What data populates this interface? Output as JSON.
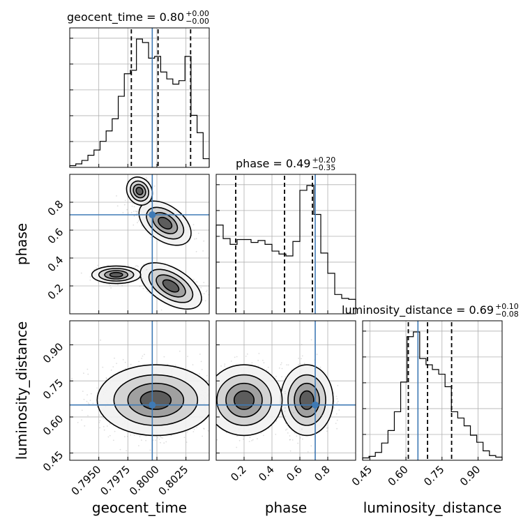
{
  "chart_data": {
    "type": "corner",
    "parameters": [
      "geocent_time",
      "phase",
      "luminosity_distance"
    ],
    "truths": {
      "geocent_time": 0.7996,
      "phase": 0.71,
      "luminosity_distance": 0.65
    },
    "ranges": {
      "geocent_time": [
        0.7925,
        0.8045
      ],
      "phase": [
        0.0,
        1.0
      ],
      "luminosity_distance": [
        0.42,
        1.0
      ]
    },
    "ticks": {
      "geocent_time": {
        "values": [
          0.795,
          0.7975,
          0.8,
          0.8025
        ],
        "labels": [
          "0.7950",
          "0.7975",
          "0.8000",
          "0.8025"
        ]
      },
      "phase": {
        "values": [
          0.2,
          0.4,
          0.6,
          0.8
        ],
        "labels": [
          "0.2",
          "0.4",
          "0.6",
          "0.8"
        ]
      },
      "luminosity_distance": {
        "values": [
          0.45,
          0.6,
          0.75,
          0.9
        ],
        "labels": [
          "0.45",
          "0.60",
          "0.75",
          "0.90"
        ]
      }
    },
    "marginals": {
      "geocent_time": {
        "title": "geocent_time = 0.80",
        "sup": "+0.00",
        "sub": "−0.00",
        "quantiles": [
          0.7978,
          0.8001,
          0.8029
        ],
        "counts": [
          2,
          4,
          8,
          14,
          20,
          30,
          42,
          56,
          82,
          108,
          112,
          148,
          144,
          126,
          128,
          110,
          102,
          96,
          100,
          128,
          60,
          40,
          10
        ]
      },
      "phase": {
        "title": "phase = 0.49",
        "sup": "+0.20",
        "sub": "−0.35",
        "quantiles": [
          0.14,
          0.49,
          0.69
        ],
        "counts": [
          92,
          78,
          72,
          77,
          77,
          74,
          76,
          72,
          65,
          62,
          60,
          75,
          128,
          133,
          103,
          63,
          42,
          20,
          16,
          15
        ]
      },
      "luminosity_distance": {
        "title": "luminosity_distance = 0.69",
        "sup": "+0.10",
        "sub": "−0.08",
        "quantiles": [
          0.61,
          0.69,
          0.79
        ],
        "counts": [
          3,
          5,
          10,
          22,
          38,
          62,
          100,
          158,
          164,
          130,
          122,
          116,
          110,
          94,
          62,
          54,
          44,
          32,
          23,
          12,
          6,
          4
        ]
      }
    },
    "joint_2d": [
      {
        "x": "geocent_time",
        "y": "phase",
        "truth_point": [
          0.7996,
          0.71
        ]
      },
      {
        "x": "geocent_time",
        "y": "luminosity_distance",
        "truth_point": [
          0.7996,
          0.65
        ]
      },
      {
        "x": "phase",
        "y": "luminosity_distance",
        "truth_point": [
          0.71,
          0.65
        ]
      }
    ],
    "colors": {
      "truth": "#3f7ab5",
      "line": "#000000",
      "grid": "#b0b0b0",
      "scatter": "#9e9e9e"
    }
  }
}
